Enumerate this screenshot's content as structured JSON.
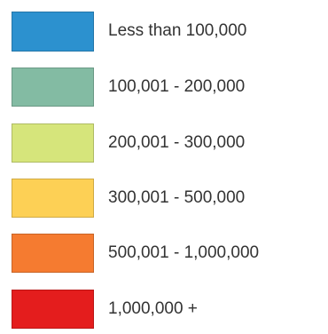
{
  "legend": {
    "items": [
      {
        "label": "Less than 100,000",
        "color": "#2c91cf"
      },
      {
        "label": "100,001 - 200,000",
        "color": "#83bba3"
      },
      {
        "label": "200,001 - 300,000",
        "color": "#d6e57b"
      },
      {
        "label": "300,001 - 500,000",
        "color": "#fdd055"
      },
      {
        "label": "500,001 - 1,000,000",
        "color": "#f57b30"
      },
      {
        "label": "1,000,000 +",
        "color": "#e41d1d"
      }
    ]
  }
}
